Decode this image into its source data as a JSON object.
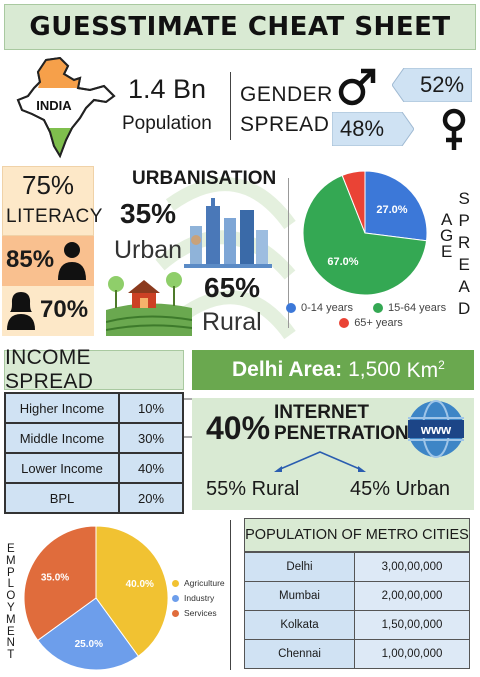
{
  "title": "GUESSTIMATE CHEAT SHEET",
  "population": {
    "map_label": "INDIA",
    "value": "1.4 Bn",
    "label": "Population"
  },
  "gender": {
    "label_line1": "GENDER",
    "label_line2": "SPREAD",
    "male_pct": "52%",
    "female_pct": "48%"
  },
  "literacy": {
    "overall": "75%",
    "label": "LITERACY",
    "male": "85%",
    "female": "70%"
  },
  "urbanisation": {
    "title": "URBANISATION",
    "urban_pct": "35%",
    "urban_label": "Urban",
    "rural_pct": "65%",
    "rural_label": "Rural"
  },
  "age_spread": {
    "title_word1": "AGE",
    "title_word2": "SPREAD",
    "chart_data": {
      "type": "pie",
      "labels": [
        "0-14 years",
        "15-64 years",
        "65+ years"
      ],
      "values": [
        27.0,
        67.0,
        6.0
      ],
      "data_labels": [
        "27.0%",
        "67.0%",
        ""
      ],
      "colors": [
        "#3c78d8",
        "#34a853",
        "#ea4335"
      ],
      "legend": "bottom"
    }
  },
  "income": {
    "title": "INCOME SPREAD",
    "rows": [
      {
        "label": "Higher Income",
        "value": "10%"
      },
      {
        "label": "Middle Income",
        "value": "30%"
      },
      {
        "label": "Lower Income",
        "value": "40%"
      },
      {
        "label": "BPL",
        "value": "20%"
      }
    ]
  },
  "delhi": {
    "label": "Delhi Area:",
    "value": "1,500",
    "unit": "Km",
    "unit_sup": "2"
  },
  "internet": {
    "pct": "40%",
    "label_line1": "INTERNET",
    "label_line2": "PENETRATION",
    "icon_text": "www",
    "rural": "55% Rural",
    "urban": "45% Urban"
  },
  "employment": {
    "title": "EMPLOYMENT",
    "chart_data": {
      "type": "pie",
      "labels": [
        "Agriculture",
        "Industry",
        "Services"
      ],
      "values": [
        40.0,
        25.0,
        35.0
      ],
      "data_labels": [
        "40.0%",
        "25.0%",
        "35.0%"
      ],
      "colors": [
        "#f1c232",
        "#6d9eeb",
        "#e06c3c"
      ],
      "legend": "right"
    }
  },
  "metro": {
    "title": "POPULATION OF METRO CITIES",
    "rows": [
      {
        "city": "Delhi",
        "population": "3,00,00,000"
      },
      {
        "city": "Mumbai",
        "population": "2,00,00,000"
      },
      {
        "city": "Kolkata",
        "population": "1,50,00,000"
      },
      {
        "city": "Chennai",
        "population": "1,00,00,000"
      }
    ]
  }
}
